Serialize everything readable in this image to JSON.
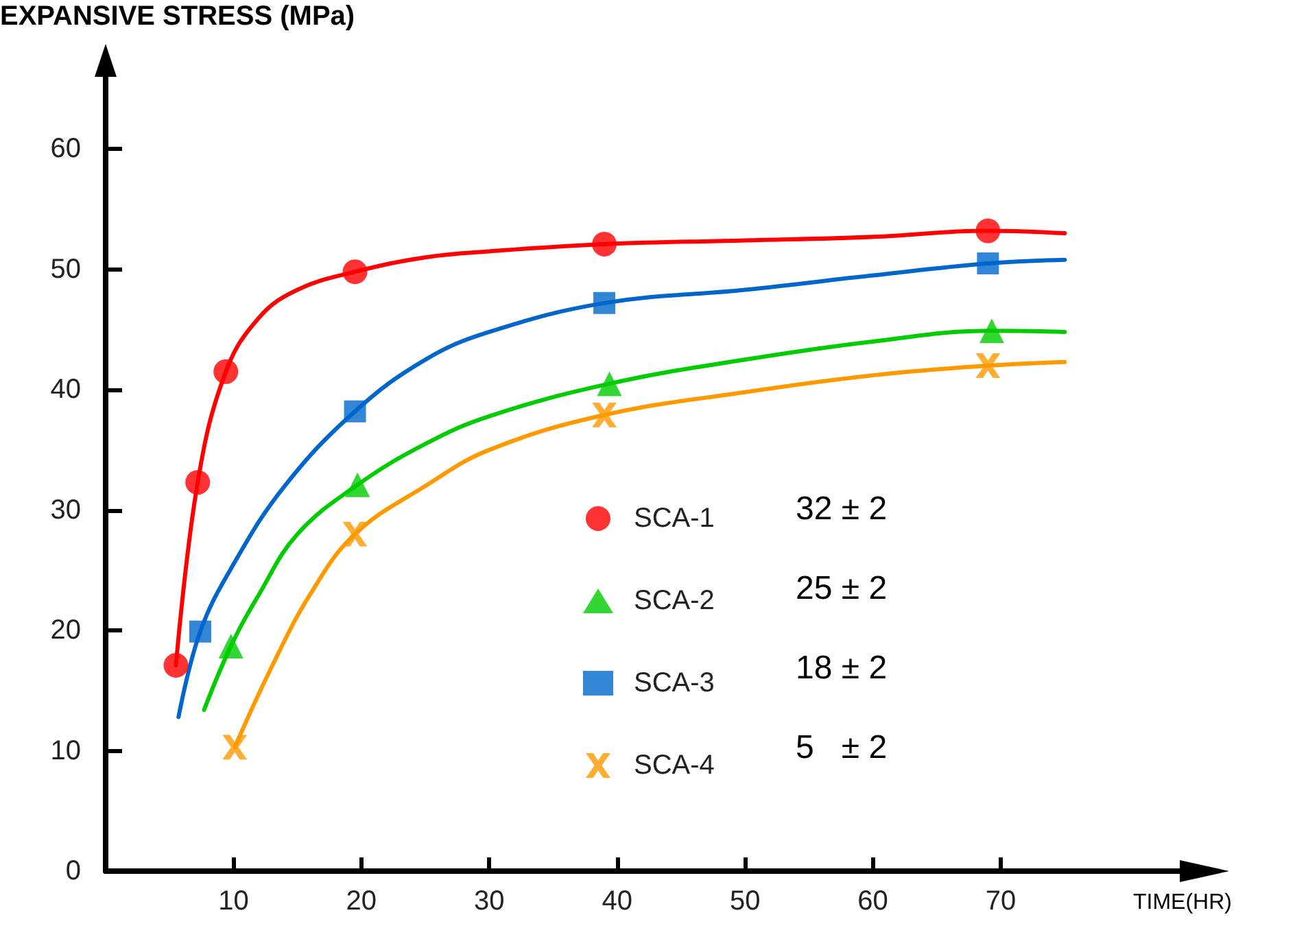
{
  "chart_data": {
    "type": "scatter",
    "xlabel": "TIME(HR)",
    "ylabel": "EXPANSIVE STRESS (MPa)",
    "xlim": [
      0,
      84
    ],
    "xticks": [
      10,
      20,
      30,
      40,
      50,
      60,
      70
    ],
    "ylim": [
      0,
      66
    ],
    "yticks": [
      0,
      10,
      20,
      30,
      40,
      50,
      60
    ],
    "grid": false,
    "legend": "bottom right",
    "annotations": [
      "32 ± 2",
      "25 ± 2",
      "18 ± 2",
      "5   ± 2"
    ],
    "series": [
      {
        "name": "SCA-1",
        "marker": "circle",
        "color": "#ff0000",
        "x": [
          5.5,
          7.2,
          9.4,
          19.5,
          39,
          69
        ],
        "values": [
          17.1,
          32.3,
          41.5,
          49.8,
          52.1,
          53.2
        ]
      },
      {
        "name": "SCA-2",
        "marker": "triangle",
        "color": "#00cc00",
        "x": [
          9.8,
          19.7,
          39.4,
          69.3
        ],
        "values": [
          18.7,
          32.1,
          40.5,
          44.9
        ]
      },
      {
        "name": "SCA-3",
        "marker": "square",
        "color": "#0066cc",
        "x": [
          7.4,
          19.5,
          39,
          69
        ],
        "values": [
          19.9,
          38.2,
          47.2,
          50.5
        ]
      },
      {
        "name": "SCA-4",
        "marker": "cross",
        "color": "#ff9900",
        "x": [
          10.1,
          19.5,
          39,
          69
        ],
        "values": [
          10.3,
          28,
          37.9,
          42
        ]
      },
      {
        "type": "line",
        "marker": "none",
        "color": "#ff0000",
        "x": [
          5.5,
          7.2,
          9.4,
          12,
          15,
          19.5,
          25,
          30,
          39,
          50,
          60,
          69,
          75
        ],
        "values": [
          17.1,
          32.3,
          41.5,
          46,
          48.3,
          49.8,
          51,
          51.5,
          52.1,
          52.4,
          52.7,
          53.2,
          53
        ]
      },
      {
        "type": "line",
        "marker": "none",
        "color": "#00cc00",
        "x": [
          7.7,
          9.8,
          12,
          15,
          19.7,
          25,
          30,
          39.4,
          50,
          60,
          69.3,
          75
        ],
        "values": [
          13.4,
          18.7,
          23,
          28,
          32.1,
          35.5,
          37.8,
          40.5,
          42.5,
          44,
          44.9,
          44.8
        ]
      },
      {
        "type": "line",
        "marker": "none",
        "color": "#0066cc",
        "x": [
          5.7,
          7.4,
          10,
          14,
          19.5,
          25,
          30,
          39,
          50,
          60,
          69,
          75
        ],
        "values": [
          12.8,
          19.9,
          25.5,
          32,
          38.2,
          42.5,
          44.8,
          47.2,
          48.3,
          49.5,
          50.5,
          50.8
        ]
      },
      {
        "type": "line",
        "marker": "none",
        "color": "#ff9900",
        "x": [
          10.1,
          13,
          16,
          19.5,
          25,
          30,
          39,
          50,
          60,
          69,
          75
        ],
        "values": [
          10.3,
          17,
          23,
          28,
          32,
          35,
          37.9,
          39.8,
          41.2,
          42,
          42.3
        ]
      }
    ]
  }
}
